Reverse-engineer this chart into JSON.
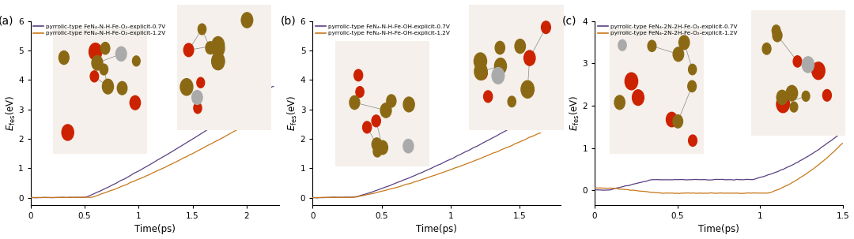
{
  "panels": [
    {
      "label": "(a)",
      "legend1": "pyrrolic-type FeN₄-N-H-Fe-O₂-explicit-0.7V",
      "legend2": "pyrrolic-type FeN₄-N-H-Fe-O₂-explicit-1.2V",
      "color1": "#5B4082",
      "color2": "#C8781A",
      "xlim": [
        0.0,
        2.3
      ],
      "ylim": [
        -0.25,
        6.0
      ],
      "xticks": [
        0.0,
        0.5,
        1.0,
        1.5,
        2.0
      ],
      "yticks": [
        0,
        1,
        2,
        3,
        4,
        5,
        6
      ],
      "xlabel": "Time(ps)",
      "ylabel": "$E_{\\rm fes}$(eV)"
    },
    {
      "label": "(b)",
      "legend1": "pyrrolic-type FeN₄-N-H-Fe-OH-explicit-0.7V",
      "legend2": "pyrrolic-type FeN₄-N-H-Fe-OH-explicit-1.2V",
      "color1": "#5B4082",
      "color2": "#C8781A",
      "xlim": [
        0.0,
        1.8
      ],
      "ylim": [
        -0.25,
        6.0
      ],
      "xticks": [
        0.0,
        0.5,
        1.0,
        1.5
      ],
      "yticks": [
        0,
        1,
        2,
        3,
        4,
        5,
        6
      ],
      "xlabel": "Time(ps)",
      "ylabel": "$E_{\\rm fes}$(eV)"
    },
    {
      "label": "(c)",
      "legend1": "pyrrolic-type FeN₄-2N-2H-Fe-O₂-explicit-0.7V",
      "legend2": "pyrrolic-type FeN₄-2N-2H-Fe-O₂-explicit-1.2V",
      "color1": "#5B4082",
      "color2": "#C8781A",
      "xlim": [
        0.0,
        1.5
      ],
      "ylim": [
        -0.35,
        4.0
      ],
      "xticks": [
        0.0,
        0.5,
        1.0,
        1.5
      ],
      "yticks": [
        0,
        1,
        2,
        3,
        4
      ],
      "xlabel": "Time(ps)",
      "ylabel": "$E_{\\rm fes}$(eV)"
    }
  ],
  "figure_bg": "#ffffff",
  "axes_bg": "#ffffff",
  "linewidth": 0.9
}
